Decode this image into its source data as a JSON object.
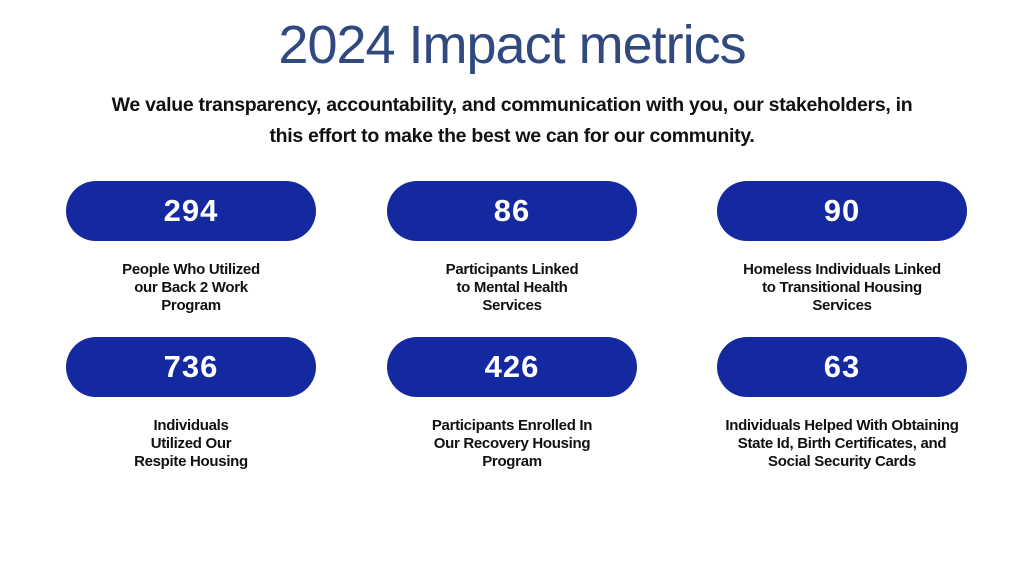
{
  "title": "2024 Impact metrics",
  "subtitle": "We value transparency, accountability, and communication with you, our stakeholders, in this effort to make the best we can for our community.",
  "metrics": [
    {
      "value": "294",
      "label": "People Who Utilized\nour Back 2 Work\nProgram"
    },
    {
      "value": "86",
      "label": "Participants Linked\nto Mental Health\nServices"
    },
    {
      "value": "90",
      "label": "Homeless Individuals Linked\nto Transitional Housing\nServices"
    },
    {
      "value": "736",
      "label": "Individuals\nUtilized Our\nRespite Housing"
    },
    {
      "value": "426",
      "label": "Participants Enrolled In\nOur Recovery Housing\nProgram"
    },
    {
      "value": "63",
      "label": "Individuals Helped With Obtaining\nState Id, Birth Certificates, and\nSocial Security Cards"
    }
  ],
  "colors": {
    "title": "#30497f",
    "pill": "#1428a0"
  }
}
